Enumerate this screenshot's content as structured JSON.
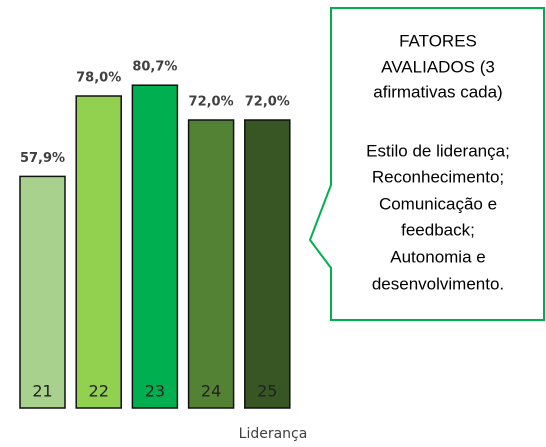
{
  "chart_data": {
    "type": "bar",
    "categories": [
      "21",
      "22",
      "23",
      "24",
      "25"
    ],
    "values": [
      57.9,
      78.0,
      80.7,
      72.0,
      72.0
    ],
    "value_labels": [
      "57,9%",
      "78,0%",
      "80,7%",
      "72,0%",
      "72,0%"
    ],
    "colors": [
      "#a9d18e",
      "#92d050",
      "#00b050",
      "#548235",
      "#375623"
    ],
    "xlabel": "Liderança",
    "annotations": [
      "FATORES",
      "AVALIADOS (3",
      "afirmativas cada)",
      "Estilo de liderança;",
      "Reconhecimento;",
      "Comunicação e",
      "feedback;",
      "Autonomia e",
      "desenvolvimento."
    ]
  }
}
